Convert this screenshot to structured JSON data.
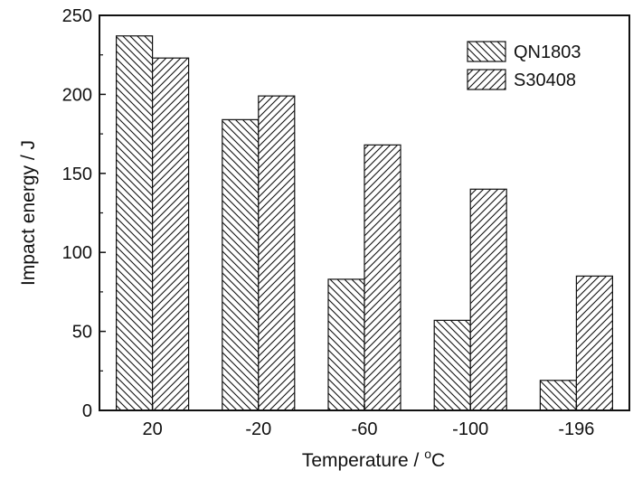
{
  "chart_data": {
    "type": "bar",
    "categories": [
      "20",
      "-20",
      "-60",
      "-100",
      "-196"
    ],
    "series": [
      {
        "name": "QN1803",
        "values": [
          237,
          184,
          83,
          57,
          19
        ],
        "pattern": "backslash-hatch"
      },
      {
        "name": "S30408",
        "values": [
          223,
          199,
          168,
          140,
          85
        ],
        "pattern": "slash-hatch"
      }
    ],
    "xlabel_main": "Temperature / ",
    "xlabel_unit_sup": "o",
    "xlabel_unit": "C",
    "ylabel": "Impact energy / J",
    "ylim": [
      0,
      250
    ],
    "yticks": [
      "0",
      "50",
      "100",
      "150",
      "200",
      "250"
    ],
    "grid": false,
    "legend_position": "top-right",
    "colors": {
      "stroke": "#111111",
      "background": "#ffffff"
    }
  }
}
